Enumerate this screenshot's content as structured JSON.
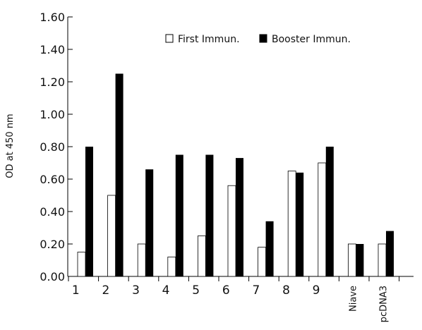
{
  "chart_data": {
    "type": "bar",
    "title": "",
    "xlabel": "",
    "ylabel": "OD at 450 nm",
    "ylim": [
      0,
      1.6
    ],
    "yticks": [
      "0.00",
      "0.20",
      "0.40",
      "0.60",
      "0.80",
      "1.00",
      "1.20",
      "1.40",
      "1.60"
    ],
    "grid": false,
    "legend_position": "top-center",
    "categories": [
      "1",
      "2",
      "3",
      "4",
      "5",
      "6",
      "7",
      "8",
      "9",
      "Niave",
      "pcDNA3"
    ],
    "series": [
      {
        "name": "First Immun.",
        "fill": "#ffffff",
        "stroke": "#000000",
        "values": [
          0.15,
          0.5,
          0.2,
          0.12,
          0.25,
          0.56,
          0.18,
          0.65,
          0.7,
          0.2,
          0.2
        ]
      },
      {
        "name": "Booster Immun.",
        "fill": "#000000",
        "stroke": "#000000",
        "values": [
          0.8,
          1.25,
          0.66,
          0.75,
          0.75,
          0.73,
          0.34,
          0.64,
          0.8,
          0.2,
          0.28
        ]
      }
    ]
  }
}
